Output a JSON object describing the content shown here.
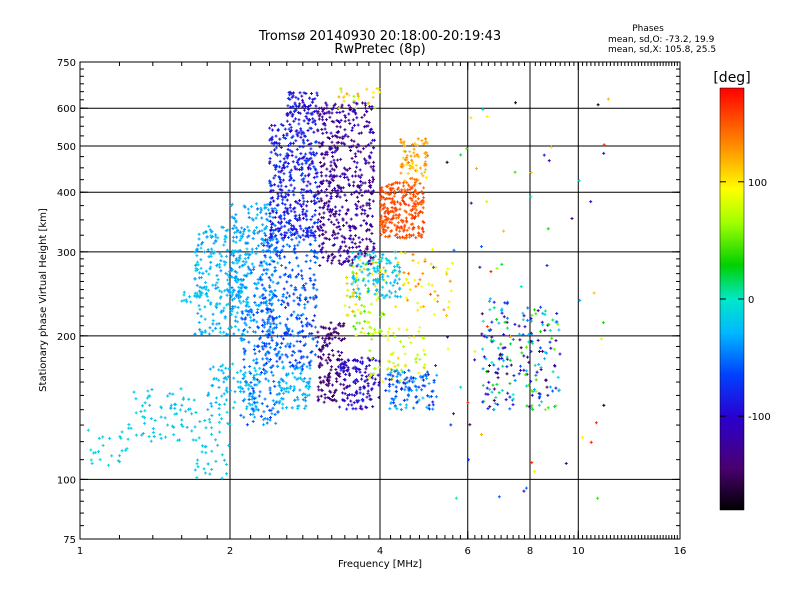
{
  "chart_data": {
    "type": "scatter",
    "title": "Tromsø 20140930 20:18:00-20:19:43",
    "subtitle": "RwPretec (8p)",
    "xlabel": "Frequency [MHz]",
    "ylabel": "Stationary phase Virtual Height [km]",
    "x_scale": "log",
    "y_scale": "log",
    "xlim": [
      1,
      16
    ],
    "ylim": [
      75,
      750
    ],
    "x_ticks": [
      "1",
      "2",
      "4",
      "6",
      "8",
      "10",
      "16"
    ],
    "x_tick_values": [
      1,
      2,
      4,
      6,
      8,
      10,
      16
    ],
    "y_ticks": [
      "75",
      "100",
      "200",
      "300",
      "400",
      "500",
      "600",
      "750"
    ],
    "y_tick_values": [
      75,
      100,
      200,
      300,
      400,
      500,
      600,
      750
    ],
    "grid": true,
    "stats": {
      "title": "Phases",
      "line1": "mean, sd,O: -73.2, 19.9",
      "line2": "mean, sd,X: 105.8, 25.5"
    },
    "colorbar": {
      "label": "[deg]",
      "min": -180,
      "max": 180,
      "ticks": [
        "100",
        "0",
        "-100"
      ],
      "tick_values": [
        100,
        0,
        -100
      ],
      "colormap": "rainbow"
    },
    "point_clusters": [
      {
        "freq": [
          1.0,
          1.25
        ],
        "height": [
          105,
          130
        ],
        "phase": [
          -20,
          -5
        ],
        "n": 25
      },
      {
        "freq": [
          1.25,
          1.7
        ],
        "height": [
          120,
          155
        ],
        "phase": [
          -30,
          -10
        ],
        "n": 70
      },
      {
        "freq": [
          1.6,
          1.75
        ],
        "height": [
          235,
          250
        ],
        "phase": [
          -30,
          -15
        ],
        "n": 20
      },
      {
        "freq": [
          1.7,
          2.0
        ],
        "height": [
          100,
          140
        ],
        "phase": [
          -25,
          -10
        ],
        "n": 45
      },
      {
        "freq": [
          1.8,
          2.3
        ],
        "height": [
          140,
          175
        ],
        "phase": [
          -35,
          -15
        ],
        "n": 90
      },
      {
        "freq": [
          1.7,
          2.2
        ],
        "height": [
          200,
          340
        ],
        "phase": [
          -40,
          -15
        ],
        "n": 260
      },
      {
        "freq": [
          2.0,
          2.5
        ],
        "height": [
          230,
          380
        ],
        "phase": [
          -50,
          -20
        ],
        "n": 200
      },
      {
        "freq": [
          2.1,
          2.5
        ],
        "height": [
          130,
          230
        ],
        "phase": [
          -70,
          -30
        ],
        "n": 180
      },
      {
        "freq": [
          2.3,
          3.0
        ],
        "height": [
          170,
          330
        ],
        "phase": [
          -80,
          -40
        ],
        "n": 320
      },
      {
        "freq": [
          2.4,
          3.0
        ],
        "height": [
          320,
          560
        ],
        "phase": [
          -110,
          -60
        ],
        "n": 380
      },
      {
        "freq": [
          2.6,
          3.0
        ],
        "height": [
          560,
          650
        ],
        "phase": [
          -120,
          -70
        ],
        "n": 80
      },
      {
        "freq": [
          2.5,
          2.9
        ],
        "height": [
          140,
          175
        ],
        "phase": [
          -40,
          -20
        ],
        "n": 80
      },
      {
        "freq": [
          3.0,
          3.9
        ],
        "height": [
          280,
          620
        ],
        "phase": [
          -150,
          -100
        ],
        "n": 520
      },
      {
        "freq": [
          3.0,
          3.4
        ],
        "height": [
          145,
          215
        ],
        "phase": [
          -160,
          -120
        ],
        "n": 140
      },
      {
        "freq": [
          3.3,
          4.0
        ],
        "height": [
          140,
          180
        ],
        "phase": [
          -130,
          -80
        ],
        "n": 130
      },
      {
        "freq": [
          3.4,
          4.1
        ],
        "height": [
          200,
          290
        ],
        "phase": [
          40,
          120
        ],
        "n": 90
      },
      {
        "freq": [
          3.5,
          4.4
        ],
        "height": [
          240,
          300
        ],
        "phase": [
          -30,
          -10
        ],
        "n": 110
      },
      {
        "freq": [
          3.3,
          4.0
        ],
        "height": [
          600,
          660
        ],
        "phase": [
          60,
          130
        ],
        "n": 25
      },
      {
        "freq": [
          3.8,
          5.0
        ],
        "height": [
          160,
          210
        ],
        "phase": [
          60,
          110
        ],
        "n": 70
      },
      {
        "freq": [
          4.0,
          4.9
        ],
        "height": [
          320,
          420
        ],
        "phase": [
          140,
          165
        ],
        "n": 260
      },
      {
        "freq": [
          4.4,
          5.0
        ],
        "height": [
          420,
          520
        ],
        "phase": [
          100,
          140
        ],
        "n": 80
      },
      {
        "freq": [
          4.1,
          5.2
        ],
        "height": [
          140,
          170
        ],
        "phase": [
          -90,
          -20
        ],
        "n": 110
      },
      {
        "freq": [
          4.3,
          5.6
        ],
        "height": [
          220,
          300
        ],
        "phase": [
          80,
          150
        ],
        "n": 50
      },
      {
        "freq": [
          6.4,
          7.5
        ],
        "height": [
          140,
          240
        ],
        "phase": [
          -160,
          40
        ],
        "n": 100
      },
      {
        "freq": [
          7.6,
          9.2
        ],
        "height": [
          140,
          230
        ],
        "phase": [
          -160,
          60
        ],
        "n": 110
      },
      {
        "freq": [
          5.0,
          11.5
        ],
        "height": [
          90,
          640
        ],
        "phase": [
          -180,
          180
        ],
        "n": 70
      }
    ]
  }
}
